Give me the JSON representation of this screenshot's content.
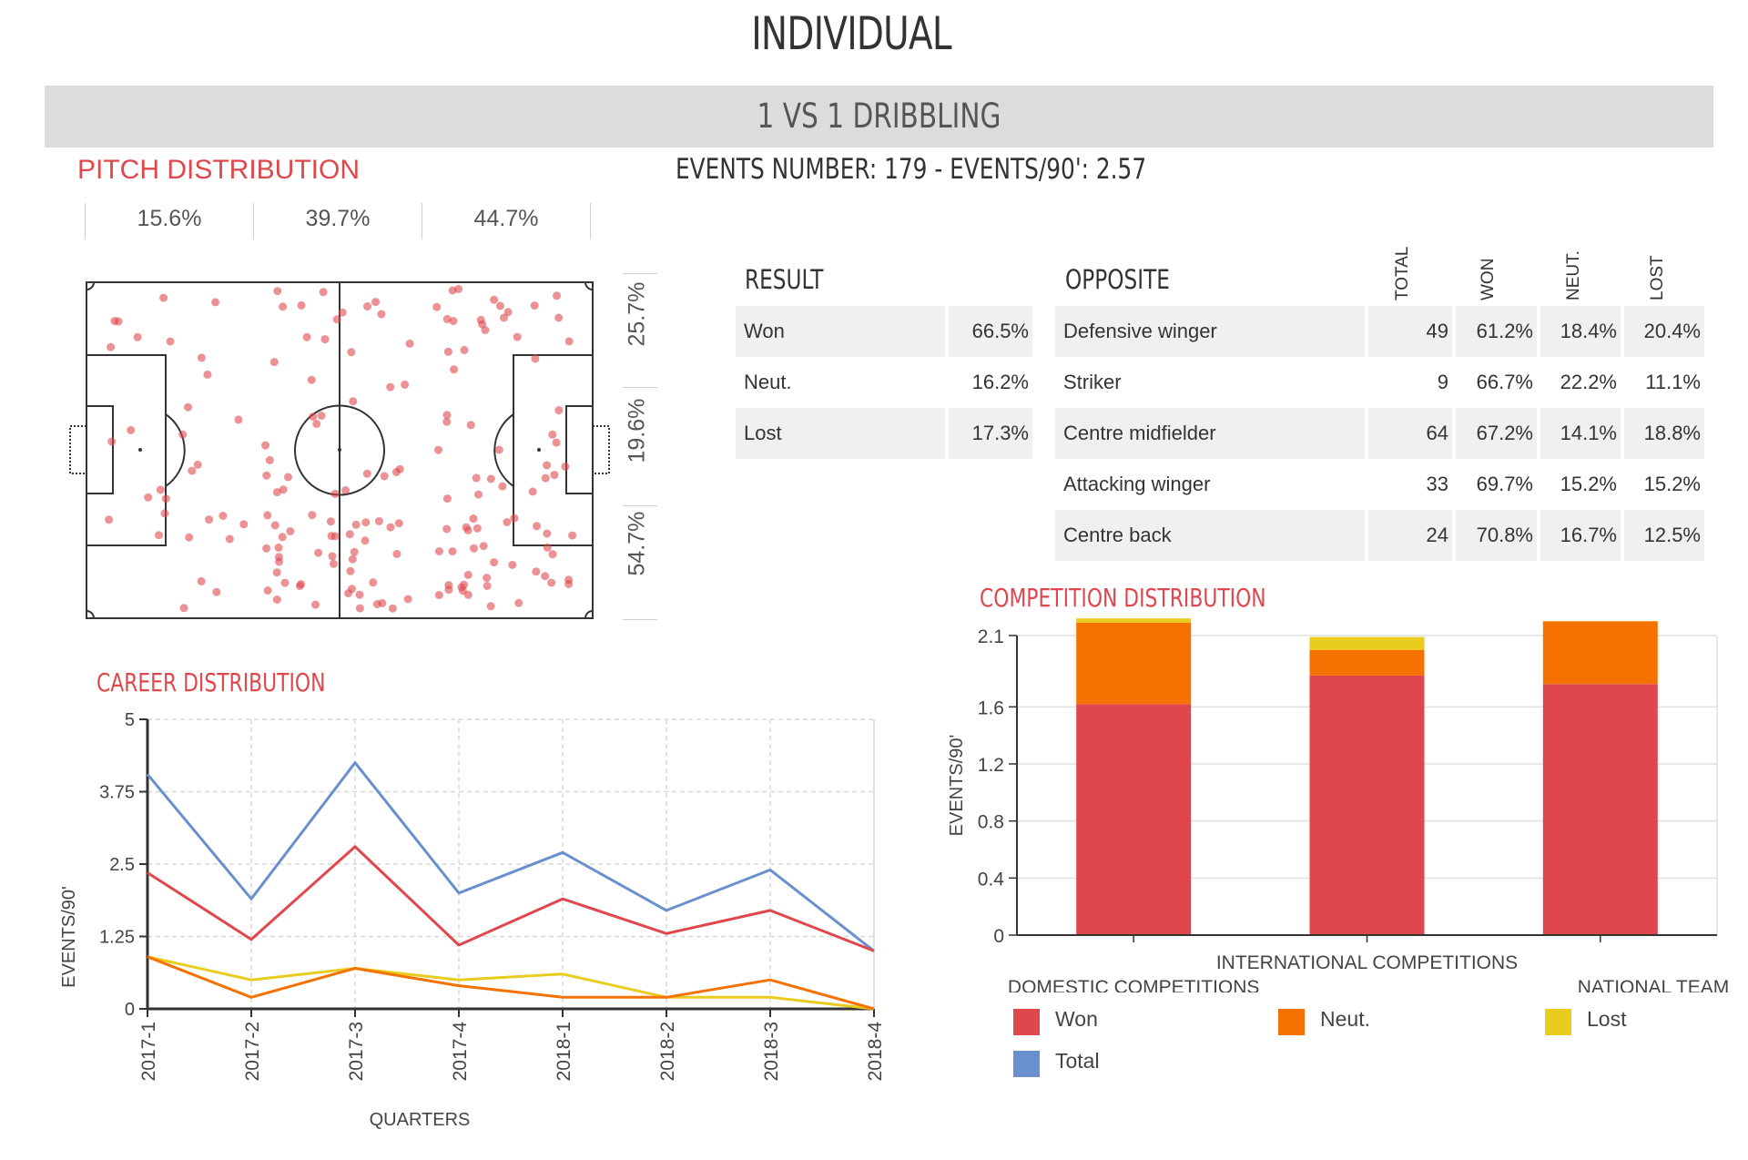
{
  "title": "INDIVIDUAL",
  "section": "1 VS 1 DRIBBLING",
  "events_line": "EVENTS NUMBER: 179  -  EVENTS/90': 2.57",
  "pitch": {
    "title": "PITCH DISTRIBUTION",
    "zones": [
      "15.6%",
      "39.7%",
      "44.7%"
    ],
    "lanes": [
      "25.7%",
      "19.6%",
      "54.7%"
    ],
    "dot_color": "#e0474c"
  },
  "result": {
    "header": "RESULT",
    "rows": [
      {
        "label": "Won",
        "value": "66.5%"
      },
      {
        "label": "Neut.",
        "value": "16.2%"
      },
      {
        "label": "Lost",
        "value": "17.3%"
      }
    ]
  },
  "opposite": {
    "header": "OPPOSITE",
    "columns": [
      "TOTAL",
      "WON",
      "NEUT.",
      "LOST"
    ],
    "rows": [
      {
        "label": "Defensive winger",
        "total": "49",
        "won": "61.2%",
        "neut": "18.4%",
        "lost": "20.4%"
      },
      {
        "label": "Striker",
        "total": "9",
        "won": "66.7%",
        "neut": "22.2%",
        "lost": "11.1%"
      },
      {
        "label": "Centre midfielder",
        "total": "64",
        "won": "67.2%",
        "neut": "14.1%",
        "lost": "18.8%"
      },
      {
        "label": "Attacking winger",
        "total": "33",
        "won": "69.7%",
        "neut": "15.2%",
        "lost": "15.2%"
      },
      {
        "label": "Centre back",
        "total": "24",
        "won": "70.8%",
        "neut": "16.7%",
        "lost": "12.5%"
      }
    ]
  },
  "colors": {
    "won": "#e0474c",
    "neut": "#f57200",
    "lost": "#e8cc1e",
    "total": "#6a8fce",
    "accent": "#e0474c"
  },
  "chart_data": [
    {
      "type": "line",
      "title": "CAREER DISTRIBUTION",
      "xlabel": "QUARTERS",
      "ylabel": "EVENTS/90'",
      "ylim": [
        0,
        5
      ],
      "yticks": [
        "0",
        "1.25",
        "2.5",
        "3.75",
        "5"
      ],
      "x": [
        "2017-1",
        "2017-2",
        "2017-3",
        "2017-4",
        "2018-1",
        "2018-2",
        "2018-3",
        "2018-4"
      ],
      "series": [
        {
          "name": "Total",
          "values": [
            4.05,
            1.9,
            4.25,
            2.0,
            2.7,
            1.7,
            2.4,
            1.0
          ]
        },
        {
          "name": "Won",
          "values": [
            2.35,
            1.2,
            2.8,
            1.1,
            1.9,
            1.3,
            1.7,
            1.0
          ]
        },
        {
          "name": "Lost",
          "values": [
            0.9,
            0.5,
            0.7,
            0.5,
            0.6,
            0.2,
            0.2,
            0.0
          ]
        },
        {
          "name": "Neut.",
          "values": [
            0.9,
            0.2,
            0.7,
            0.4,
            0.2,
            0.2,
            0.5,
            0.0
          ]
        }
      ]
    },
    {
      "type": "bar",
      "stacked": true,
      "title": "COMPETITION DISTRIBUTION",
      "ylabel": "EVENTS/90'",
      "ylim": [
        0,
        2.1
      ],
      "yticks": [
        "0",
        "0.4",
        "0.8",
        "1.2",
        "1.6",
        "2.1"
      ],
      "categories": [
        "DOMESTIC COMPETITIONS",
        "INTERNATIONAL COMPETITIONS",
        "NATIONAL TEAM"
      ],
      "series": [
        {
          "name": "Won",
          "values": [
            1.62,
            1.82,
            1.76
          ]
        },
        {
          "name": "Neut.",
          "values": [
            0.57,
            0.18,
            0.44
          ]
        },
        {
          "name": "Lost",
          "values": [
            0.03,
            0.09,
            0.0
          ]
        }
      ],
      "legend": [
        "Won",
        "Neut.",
        "Lost",
        "Total"
      ]
    }
  ]
}
